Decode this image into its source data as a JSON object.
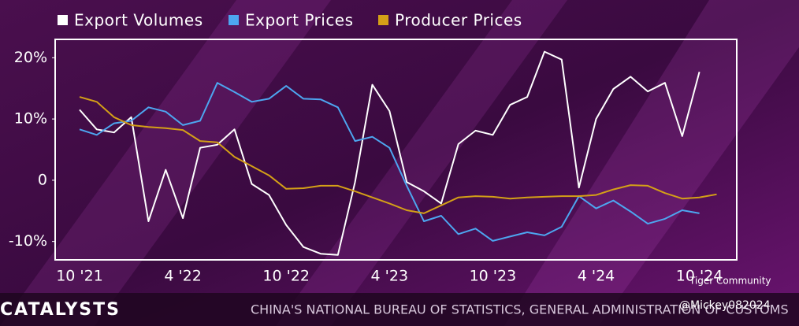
{
  "chart_data": {
    "type": "line",
    "categories": [
      "10 '21",
      null,
      null,
      null,
      null,
      null,
      "4 '22",
      null,
      null,
      null,
      null,
      null,
      "10 '22",
      null,
      null,
      null,
      null,
      null,
      "4 '23",
      null,
      null,
      null,
      null,
      null,
      "10 '23",
      null,
      null,
      null,
      null,
      null,
      "4 '24",
      null,
      null,
      null,
      null,
      null,
      "10 '24",
      null
    ],
    "series": [
      {
        "name": "Export Volumes",
        "color": "#ffffff",
        "values": [
          11.5,
          8.3,
          7.8,
          10.3,
          -6.7,
          1.7,
          -6.2,
          5.3,
          5.8,
          8.3,
          -0.6,
          -2.4,
          -7.3,
          -10.9,
          -12,
          -12.2,
          -0.3,
          15.6,
          11.3,
          -0.3,
          -1.8,
          -3.8,
          5.9,
          8.1,
          7.4,
          12.3,
          13.6,
          21,
          19.7,
          -1.2,
          10,
          14.9,
          16.9,
          14.5,
          15.9,
          7.2,
          17.7,
          null
        ]
      },
      {
        "name": "Export Prices",
        "color": "#4da6f0",
        "values": [
          8.3,
          7.4,
          9.3,
          9.7,
          11.9,
          11.2,
          9,
          9.7,
          15.9,
          14.4,
          12.8,
          13.3,
          15.4,
          13.3,
          13.2,
          11.9,
          6.4,
          7.1,
          5.3,
          -0.9,
          -6.7,
          -5.8,
          -8.8,
          -7.9,
          -9.9,
          -9.2,
          -8.5,
          -9,
          -7.6,
          -2.6,
          -4.6,
          -3.3,
          -5.1,
          -7.1,
          -6.3,
          -4.9,
          -5.4,
          null
        ]
      },
      {
        "name": "Producer Prices",
        "color": "#d4a017",
        "values": [
          13.6,
          12.8,
          10.3,
          9,
          8.7,
          8.5,
          8.2,
          6.4,
          6.2,
          3.8,
          2.3,
          0.8,
          -1.4,
          -1.3,
          -0.9,
          -0.9,
          -1.8,
          -2.8,
          -3.8,
          -4.9,
          -5.4,
          -4.1,
          -2.8,
          -2.6,
          -2.7,
          -3,
          -2.8,
          -2.7,
          -2.6,
          -2.6,
          -2.4,
          -1.5,
          -0.8,
          -0.9,
          -2.1,
          -3,
          -2.8,
          -2.3
        ]
      }
    ],
    "ylim": [
      -13,
      23
    ],
    "yticks": [
      {
        "value": 20,
        "label": "20%"
      },
      {
        "value": 10,
        "label": "10%"
      },
      0,
      {
        "value": -10,
        "label": "-10%"
      }
    ],
    "brand": "CATALYSTS",
    "source": "CHINA'S NATIONAL BUREAU OF STATISTICS, GENERAL ADMINISTRATION OF CUSTOMS",
    "watermark": [
      "Tiger Community",
      "@Mickey082024"
    ]
  }
}
